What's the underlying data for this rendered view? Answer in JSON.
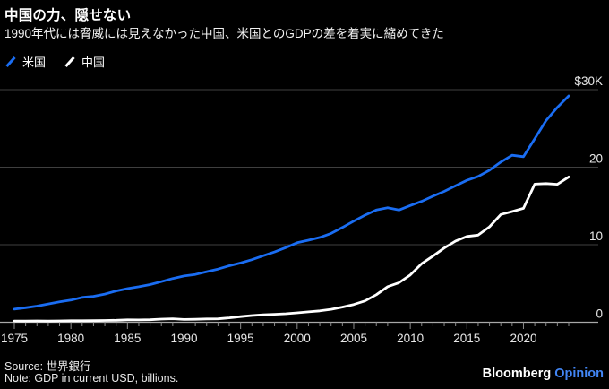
{
  "header": {
    "title": "中国の力、隠せない",
    "subtitle": "1990年代には脅威には見えなかった中国、米国とのGDPの差を着実に縮めてきた"
  },
  "footer": {
    "source": "Source: 世界銀行",
    "note": "Note: GDP in current USD, billions.",
    "brand": "Bloomberg",
    "brand_suffix": "Opinion"
  },
  "colors": {
    "background": "#000000",
    "us_line": "#1a6df2",
    "china_line": "#ffffff",
    "grid": "#3f3f3f",
    "axis_baseline": "#a8a8a8",
    "tick": "#8a8a8a",
    "axis_label": "#e8e8e8",
    "opinion_blue": "#4286f5"
  },
  "chart_data": {
    "type": "line",
    "title": "中国の力、隠せない",
    "xlabel": "",
    "ylabel": "GDP in current USD, billions",
    "ylim": [
      0,
      30000
    ],
    "grid": "horizontal",
    "legend_position": "top-left",
    "ytick_values": [
      0,
      10000,
      20000,
      30000
    ],
    "ytick_labels": [
      "0",
      "10",
      "20",
      "$30K"
    ],
    "xtick_label_years": [
      1975,
      1980,
      1985,
      1990,
      1995,
      2000,
      2005,
      2010,
      2015,
      2020
    ],
    "x": [
      1975,
      1976,
      1977,
      1978,
      1979,
      1980,
      1981,
      1982,
      1983,
      1984,
      1985,
      1986,
      1987,
      1988,
      1989,
      1990,
      1991,
      1992,
      1993,
      1994,
      1995,
      1996,
      1997,
      1998,
      1999,
      2000,
      2001,
      2002,
      2003,
      2004,
      2005,
      2006,
      2007,
      2008,
      2009,
      2010,
      2011,
      2012,
      2013,
      2014,
      2015,
      2016,
      2017,
      2018,
      2019,
      2020,
      2021,
      2022,
      2023,
      2024
    ],
    "series": [
      {
        "name": "米国",
        "color": "#1a6df2",
        "values": [
          1689,
          1878,
          2086,
          2357,
          2632,
          2857,
          3207,
          3344,
          3634,
          4038,
          4339,
          4580,
          4855,
          5236,
          5642,
          5963,
          6158,
          6520,
          6859,
          7287,
          7640,
          8073,
          8578,
          9063,
          9631,
          10251,
          10582,
          10936,
          11458,
          12217,
          13039,
          13816,
          14474,
          14770,
          14478,
          15049,
          15600,
          16254,
          16880,
          17608,
          18295,
          18805,
          19612,
          20657,
          21540,
          21354,
          23681,
          26007,
          27721,
          29185
        ]
      },
      {
        "name": "中国",
        "color": "#ffffff",
        "values": [
          161,
          151,
          172,
          148,
          176,
          191,
          196,
          203,
          229,
          258,
          307,
          298,
          327,
          407,
          456,
          361,
          383,
          427,
          445,
          564,
          734,
          864,
          961,
          1029,
          1094,
          1211,
          1339,
          1471,
          1660,
          1955,
          2286,
          2752,
          3550,
          4594,
          5102,
          6087,
          7552,
          8532,
          9570,
          10476,
          11062,
          11233,
          12310,
          13895,
          14280,
          14688,
          17820,
          17882,
          17795,
          18745
        ]
      }
    ]
  }
}
